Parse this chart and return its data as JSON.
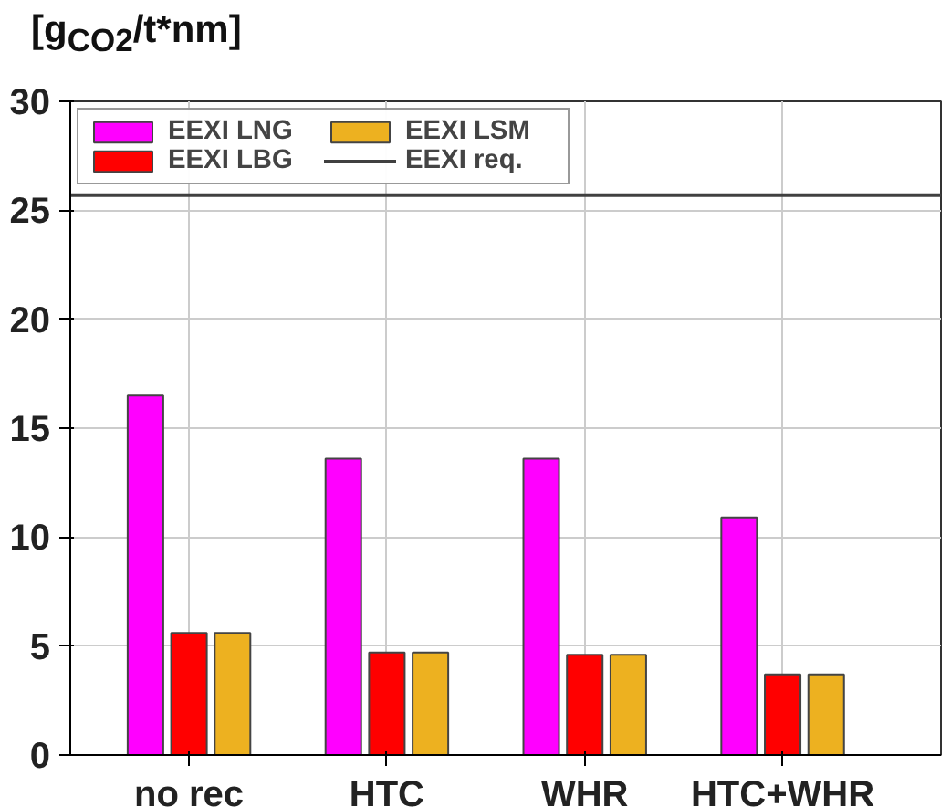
{
  "chart_data": {
    "type": "bar",
    "ylabel": "[g$_{CO2}$/t*nm]",
    "categories": [
      "no rec",
      "HTC",
      "WHR",
      "HTC+WHR"
    ],
    "series": [
      {
        "name": "EEXI LNG",
        "color": "#ff00ff",
        "values": [
          16.5,
          13.6,
          13.6,
          10.9
        ]
      },
      {
        "name": "EEXI LBG",
        "color": "#ff0000",
        "values": [
          5.6,
          4.7,
          4.6,
          3.7
        ]
      },
      {
        "name": "EEXI LSM",
        "color": "#edb120",
        "values": [
          5.6,
          4.7,
          4.6,
          3.7
        ]
      }
    ],
    "ref_lines": [
      {
        "axis": "y",
        "value": 25.7,
        "label": "EEXI req.",
        "color": "#404040"
      }
    ],
    "ylim": [
      0,
      30
    ],
    "yticks": [
      0,
      5,
      10,
      15,
      20,
      25,
      30
    ],
    "grid": true,
    "legend": "top left"
  }
}
